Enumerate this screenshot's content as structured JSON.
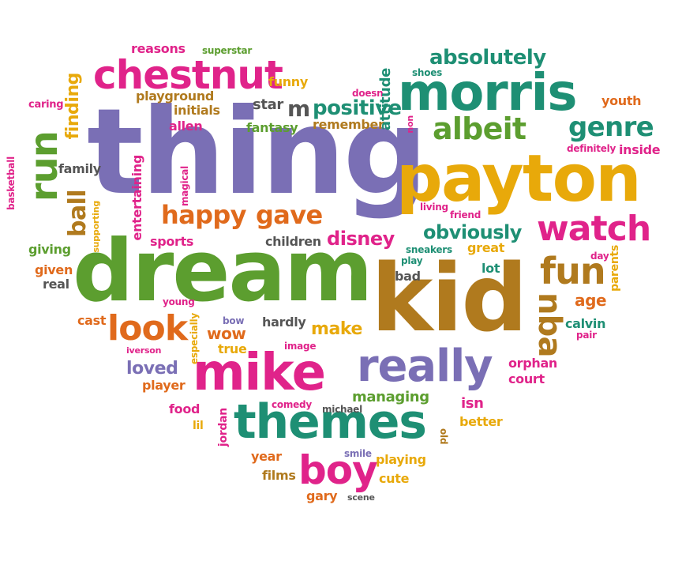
{
  "colors": {
    "purple": "#7a6fb5",
    "green": "#5c9e2f",
    "teal": "#1e8f74",
    "pink": "#e0238a",
    "orange": "#e06a1c",
    "gold": "#e8a90a",
    "brown": "#b07a1e",
    "gray": "#555555"
  },
  "words": [
    {
      "text": "thing",
      "color": "purple"
    },
    {
      "text": "dream",
      "color": "green"
    },
    {
      "text": "kid",
      "color": "brown"
    },
    {
      "text": "payton",
      "color": "gold"
    },
    {
      "text": "morris",
      "color": "teal"
    },
    {
      "text": "chestnut",
      "color": "pink"
    },
    {
      "text": "themes",
      "color": "teal"
    },
    {
      "text": "mike",
      "color": "pink"
    },
    {
      "text": "really",
      "color": "purple"
    },
    {
      "text": "watch",
      "color": "pink"
    },
    {
      "text": "albeit",
      "color": "green"
    },
    {
      "text": "genre",
      "color": "teal"
    },
    {
      "text": "absolutely",
      "color": "teal"
    },
    {
      "text": "fun",
      "color": "brown"
    },
    {
      "text": "look",
      "color": "orange"
    },
    {
      "text": "boy",
      "color": "pink"
    },
    {
      "text": "run",
      "color": "green"
    },
    {
      "text": "ball",
      "color": "brown"
    },
    {
      "text": "happy",
      "color": "orange"
    },
    {
      "text": "gave",
      "color": "orange"
    },
    {
      "text": "obviously",
      "color": "teal"
    },
    {
      "text": "disney",
      "color": "pink"
    },
    {
      "text": "nba",
      "color": "brown"
    },
    {
      "text": "finding",
      "color": "gold"
    },
    {
      "text": "positive",
      "color": "teal"
    },
    {
      "text": "m",
      "color": "gray"
    },
    {
      "text": "funny",
      "color": "gold"
    },
    {
      "text": "reasons",
      "color": "pink"
    },
    {
      "text": "superstar",
      "color": "green"
    },
    {
      "text": "playground",
      "color": "brown"
    },
    {
      "text": "initials",
      "color": "brown"
    },
    {
      "text": "allen",
      "color": "pink"
    },
    {
      "text": "caring",
      "color": "pink"
    },
    {
      "text": "star",
      "color": "gray"
    },
    {
      "text": "fantasy",
      "color": "green"
    },
    {
      "text": "remember",
      "color": "brown"
    },
    {
      "text": "doesn",
      "color": "pink"
    },
    {
      "text": "attitude",
      "color": "teal"
    },
    {
      "text": "shoes",
      "color": "teal"
    },
    {
      "text": "youth",
      "color": "orange"
    },
    {
      "text": "non",
      "color": "pink"
    },
    {
      "text": "definitely",
      "color": "pink"
    },
    {
      "text": "inside",
      "color": "pink"
    },
    {
      "text": "family",
      "color": "gray"
    },
    {
      "text": "basketball",
      "color": "pink"
    },
    {
      "text": "entertaining",
      "color": "pink"
    },
    {
      "text": "magical",
      "color": "pink"
    },
    {
      "text": "supporting",
      "color": "gold"
    },
    {
      "text": "giving",
      "color": "green"
    },
    {
      "text": "sports",
      "color": "pink"
    },
    {
      "text": "children",
      "color": "gray"
    },
    {
      "text": "living",
      "color": "pink"
    },
    {
      "text": "friend",
      "color": "pink"
    },
    {
      "text": "sneakers",
      "color": "teal"
    },
    {
      "text": "play",
      "color": "teal"
    },
    {
      "text": "great",
      "color": "gold"
    },
    {
      "text": "day",
      "color": "pink"
    },
    {
      "text": "parents",
      "color": "gold"
    },
    {
      "text": "given",
      "color": "orange"
    },
    {
      "text": "real",
      "color": "gray"
    },
    {
      "text": "bad",
      "color": "gray"
    },
    {
      "text": "lot",
      "color": "teal"
    },
    {
      "text": "age",
      "color": "orange"
    },
    {
      "text": "young",
      "color": "pink"
    },
    {
      "text": "cast",
      "color": "orange"
    },
    {
      "text": "iverson",
      "color": "pink"
    },
    {
      "text": "especially",
      "color": "gold"
    },
    {
      "text": "bow",
      "color": "purple"
    },
    {
      "text": "wow",
      "color": "orange"
    },
    {
      "text": "hardly",
      "color": "gray"
    },
    {
      "text": "make",
      "color": "gold"
    },
    {
      "text": "true",
      "color": "gold"
    },
    {
      "text": "image",
      "color": "pink"
    },
    {
      "text": "calvin",
      "color": "teal"
    },
    {
      "text": "pair",
      "color": "pink"
    },
    {
      "text": "loved",
      "color": "purple"
    },
    {
      "text": "player",
      "color": "orange"
    },
    {
      "text": "orphan",
      "color": "pink"
    },
    {
      "text": "court",
      "color": "pink"
    },
    {
      "text": "managing",
      "color": "green"
    },
    {
      "text": "isn",
      "color": "pink"
    },
    {
      "text": "food",
      "color": "pink"
    },
    {
      "text": "jordan",
      "color": "pink"
    },
    {
      "text": "comedy",
      "color": "pink"
    },
    {
      "text": "michael",
      "color": "gray"
    },
    {
      "text": "lil",
      "color": "gold"
    },
    {
      "text": "better",
      "color": "gold"
    },
    {
      "text": "old",
      "color": "brown"
    },
    {
      "text": "year",
      "color": "orange"
    },
    {
      "text": "smile",
      "color": "purple"
    },
    {
      "text": "playing",
      "color": "gold"
    },
    {
      "text": "films",
      "color": "brown"
    },
    {
      "text": "cute",
      "color": "gold"
    },
    {
      "text": "gary",
      "color": "orange"
    },
    {
      "text": "scene",
      "color": "gray"
    }
  ]
}
